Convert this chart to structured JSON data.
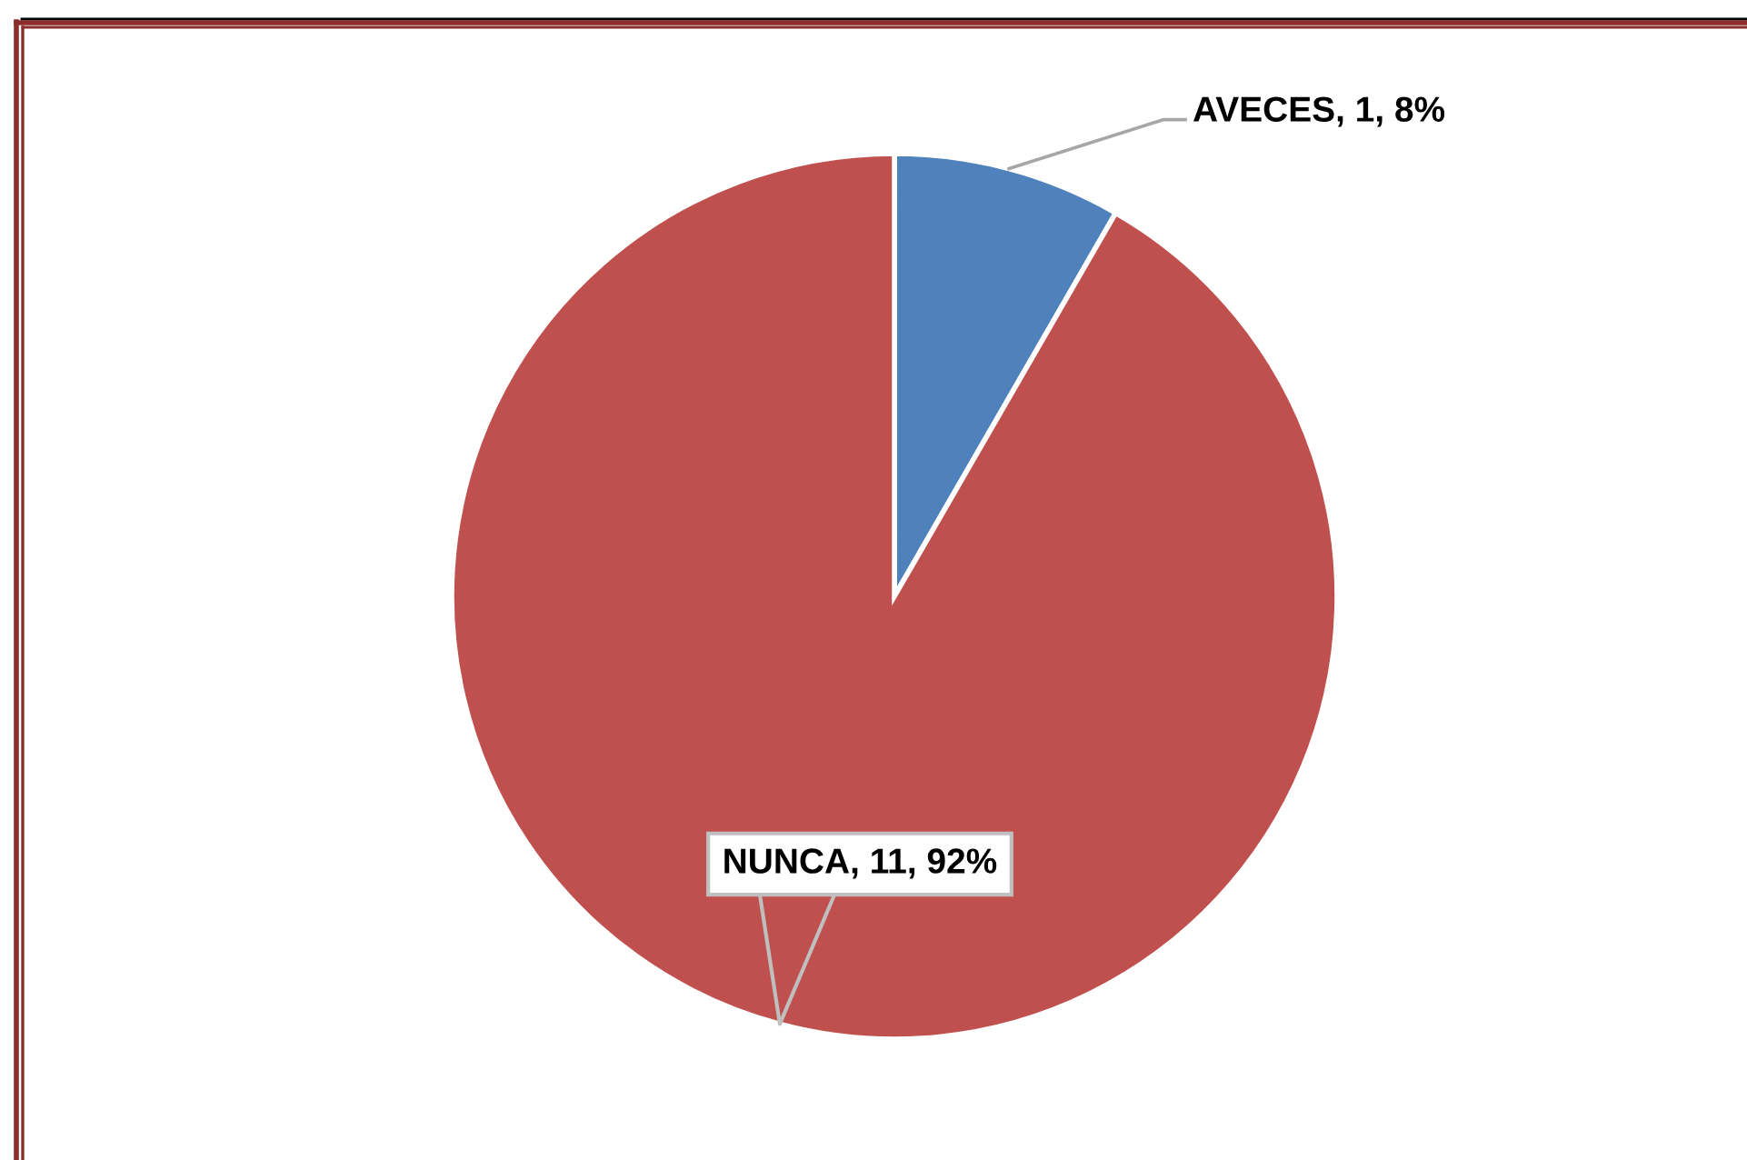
{
  "chart_data": {
    "type": "pie",
    "categories": [
      "AVECES",
      "NUNCA"
    ],
    "values": [
      1,
      11
    ],
    "colors": [
      "#4f81bd",
      "#c0504d"
    ],
    "value_labels": [
      "1, 8%",
      "11, 92%"
    ]
  }
}
